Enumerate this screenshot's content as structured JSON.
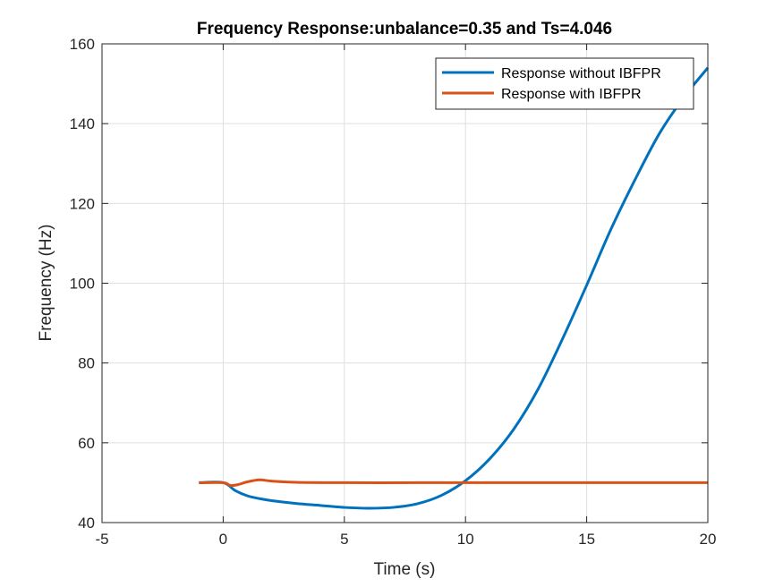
{
  "chart_data": {
    "type": "line",
    "title": "Frequency Response:unbalance=0.35 and Ts=4.046",
    "xlabel": "Time (s)",
    "ylabel": "Frequency (Hz)",
    "xlim": [
      -5,
      20
    ],
    "ylim": [
      40,
      160
    ],
    "xticks": [
      -5,
      0,
      5,
      10,
      15,
      20
    ],
    "yticks": [
      40,
      60,
      80,
      100,
      120,
      140,
      160
    ],
    "grid": true,
    "legend_position": "top-right",
    "series": [
      {
        "name": "Response without IBFPR",
        "color": "#0072BD",
        "x": [
          -1,
          0,
          0.5,
          1,
          1.5,
          2,
          3,
          4,
          5,
          6,
          7,
          8,
          9,
          10,
          11,
          12,
          13,
          14,
          15,
          16,
          17,
          18,
          19,
          20
        ],
        "y": [
          50,
          50,
          48,
          46.7,
          46,
          45.5,
          44.8,
          44.3,
          43.8,
          43.6,
          43.8,
          44.7,
          46.8,
          50.5,
          56,
          63.5,
          73.5,
          86,
          99.5,
          113.5,
          126,
          137.5,
          146.5,
          154
        ]
      },
      {
        "name": "Response with IBFPR",
        "color": "#D95319",
        "x": [
          -1,
          0,
          0.3,
          0.6,
          1,
          1.5,
          2,
          3,
          5,
          8,
          10,
          15,
          20
        ],
        "y": [
          50,
          50,
          49.3,
          49.5,
          50.2,
          50.7,
          50.4,
          50.1,
          50,
          50,
          50,
          50,
          50
        ]
      }
    ]
  }
}
